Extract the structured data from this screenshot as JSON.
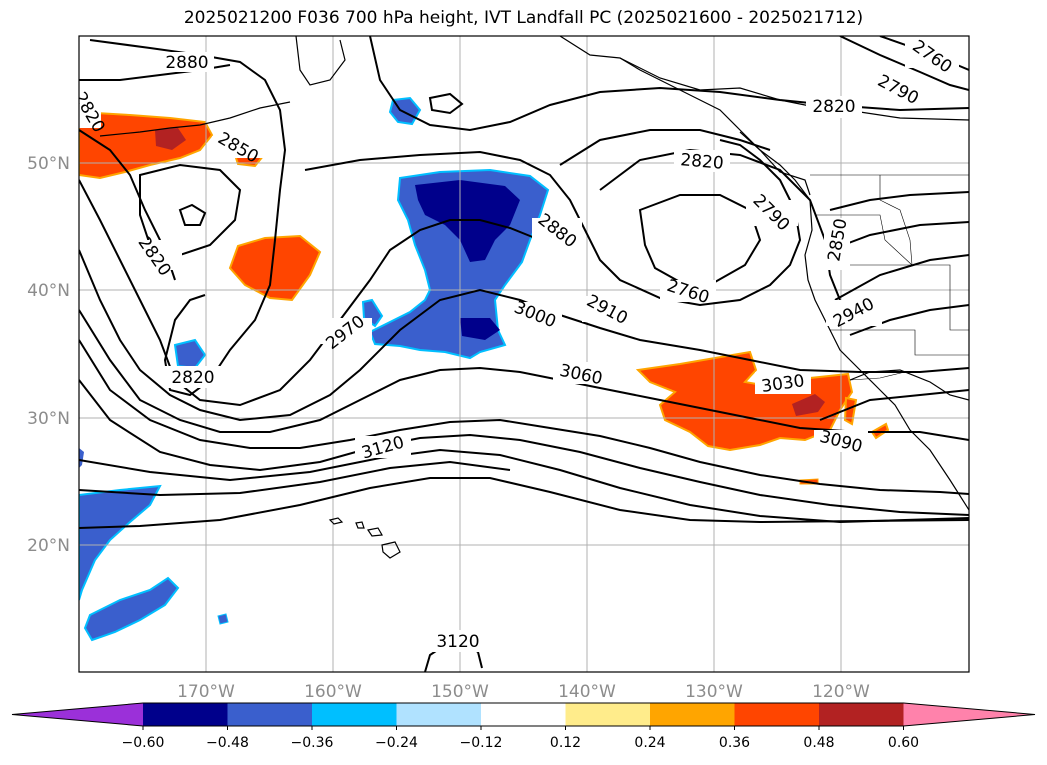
{
  "title": "2025021200 F036 700 hPa height, IVT Landfall PC (2025021600 - 2025021712)",
  "lat_labels": [
    "50°N",
    "40°N",
    "30°N",
    "20°N"
  ],
  "lon_labels": [
    "170°W",
    "160°W",
    "150°W",
    "140°W",
    "130°W",
    "120°W"
  ],
  "colorbar": {
    "ticks": [
      "−0.60",
      "−0.48",
      "−0.36",
      "−0.24",
      "−0.12",
      "0.12",
      "0.24",
      "0.36",
      "0.48",
      "0.60"
    ],
    "colors": [
      "#9b30d9",
      "#00008b",
      "#3a5fcd",
      "#00bfff",
      "#b0e2ff",
      "#ffffff",
      "#ffec8b",
      "#ffa500",
      "#ff4500",
      "#b22222",
      "#ff82ab"
    ]
  },
  "contour_labels": [
    "2880",
    "2820",
    "2850",
    "2820",
    "2820",
    "2970",
    "2880",
    "3000",
    "3060",
    "3120",
    "2910",
    "2820",
    "2790",
    "2760",
    "2850",
    "2940",
    "3030",
    "3090",
    "2760",
    "2790",
    "2820",
    "3120"
  ]
}
